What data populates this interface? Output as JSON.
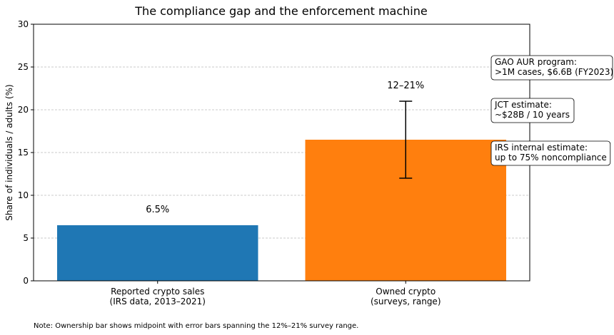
{
  "chart_data": {
    "type": "bar",
    "title": "The compliance gap and the enforcement machine",
    "y_label": "Share of individuals / adults (%)",
    "categories": [
      "Reported crypto sales\n(IRS data, 2013–2021)",
      "Owned crypto\n(surveys, range)"
    ],
    "values": [
      6.5,
      16.5
    ],
    "errors": [
      null,
      4.5
    ],
    "value_labels": [
      "6.5%",
      "12–21%"
    ],
    "colors": [
      "#1f77b4",
      "#ff7f0e"
    ],
    "ylim": [
      0,
      30
    ],
    "yticks": [
      0,
      5,
      10,
      15,
      20,
      25,
      30
    ],
    "grid": true,
    "annotations": [
      "GAO AUR program:\n>1M cases, $6.6B (FY2023)",
      "JCT estimate:\n~$28B / 10 years",
      "IRS internal estimate:\nup to 75% noncompliance"
    ],
    "note": "Note: Ownership bar shows midpoint with error bars spanning the 12%–21% survey range."
  }
}
